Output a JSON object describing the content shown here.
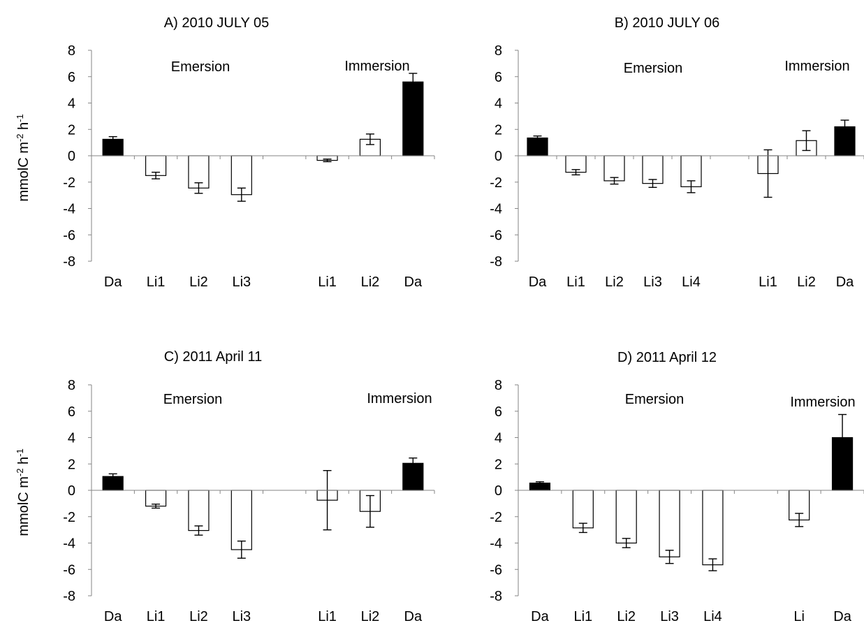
{
  "figure": {
    "y_axis_label": "mmolC m-2 h-1"
  },
  "chart_data": [
    {
      "type": "bar",
      "title": "A) 2010 JULY 05",
      "ylabel": "mmolC m-2 h-1",
      "ylim": [
        -8,
        8
      ],
      "yticks": [
        8,
        6,
        4,
        2,
        0,
        -2,
        -4,
        -6,
        -8
      ],
      "slots": 8,
      "phase_labels": [
        "Emersion",
        "Immersion"
      ],
      "categories": [
        "Da",
        "Li1",
        "Li2",
        "Li3",
        "Li1",
        "Li2",
        "Da"
      ],
      "slot_index": [
        0,
        1,
        2,
        3,
        5,
        6,
        7
      ],
      "values": [
        1.25,
        -1.5,
        -2.45,
        -2.95,
        -0.35,
        1.25,
        5.6
      ],
      "errors": [
        0.2,
        0.25,
        0.4,
        0.5,
        0.1,
        0.4,
        0.65
      ],
      "fill": [
        "#000000",
        "#ffffff",
        "#ffffff",
        "#ffffff",
        "#ffffff",
        "#ffffff",
        "#000000"
      ]
    },
    {
      "type": "bar",
      "title": "B) 2010 JULY 06",
      "ylabel": "",
      "ylim": [
        -8,
        8
      ],
      "yticks": [
        8,
        6,
        4,
        2,
        0,
        -2,
        -4,
        -6,
        -8
      ],
      "slots": 9,
      "phase_labels": [
        "Emersion",
        "Immersion"
      ],
      "categories": [
        "Da",
        "Li1",
        "Li2",
        "Li3",
        "Li4",
        "Li1",
        "Li2",
        "Da"
      ],
      "slot_index": [
        0,
        1,
        2,
        3,
        4,
        6,
        7,
        8
      ],
      "values": [
        1.35,
        -1.25,
        -1.9,
        -2.1,
        -2.35,
        -1.35,
        1.15,
        2.2
      ],
      "errors": [
        0.15,
        0.2,
        0.25,
        0.3,
        0.45,
        1.8,
        0.75,
        0.5
      ],
      "fill": [
        "#000000",
        "#ffffff",
        "#ffffff",
        "#ffffff",
        "#ffffff",
        "#ffffff",
        "#ffffff",
        "#000000"
      ]
    },
    {
      "type": "bar",
      "title": "C) 2011 April 11",
      "ylabel": "mmolC m-2 h-1",
      "ylim": [
        -8,
        8
      ],
      "yticks": [
        8,
        6,
        4,
        2,
        0,
        -2,
        -4,
        -6,
        -8
      ],
      "slots": 8,
      "phase_labels": [
        "Emersion",
        "Immersion"
      ],
      "categories": [
        "Da",
        "Li1",
        "Li2",
        "Li3",
        "Li1",
        "Li2",
        "Da"
      ],
      "slot_index": [
        0,
        1,
        2,
        3,
        5,
        6,
        7
      ],
      "values": [
        1.05,
        -1.2,
        -3.05,
        -4.5,
        -0.75,
        -1.6,
        2.05
      ],
      "errors": [
        0.2,
        0.15,
        0.35,
        0.65,
        2.25,
        1.2,
        0.4
      ],
      "fill": [
        "#000000",
        "#ffffff",
        "#ffffff",
        "#ffffff",
        "#ffffff",
        "#ffffff",
        "#000000"
      ]
    },
    {
      "type": "bar",
      "title": "D) 2011 April 12",
      "ylabel": "",
      "ylim": [
        -8,
        8
      ],
      "yticks": [
        8,
        6,
        4,
        2,
        0,
        -2,
        -4,
        -6,
        -8
      ],
      "slots": 8,
      "phase_labels": [
        "Emersion",
        "Immersion"
      ],
      "categories": [
        "Da",
        "Li1",
        "Li2",
        "Li3",
        "Li4",
        "Li",
        "Da"
      ],
      "slot_index": [
        0,
        1,
        2,
        3,
        4,
        6,
        7
      ],
      "values": [
        0.55,
        -2.85,
        -4.0,
        -5.05,
        -5.65,
        -2.25,
        4.0
      ],
      "errors": [
        0.1,
        0.35,
        0.35,
        0.5,
        0.45,
        0.5,
        1.75
      ],
      "fill": [
        "#000000",
        "#ffffff",
        "#ffffff",
        "#ffffff",
        "#ffffff",
        "#ffffff",
        "#000000"
      ]
    }
  ]
}
